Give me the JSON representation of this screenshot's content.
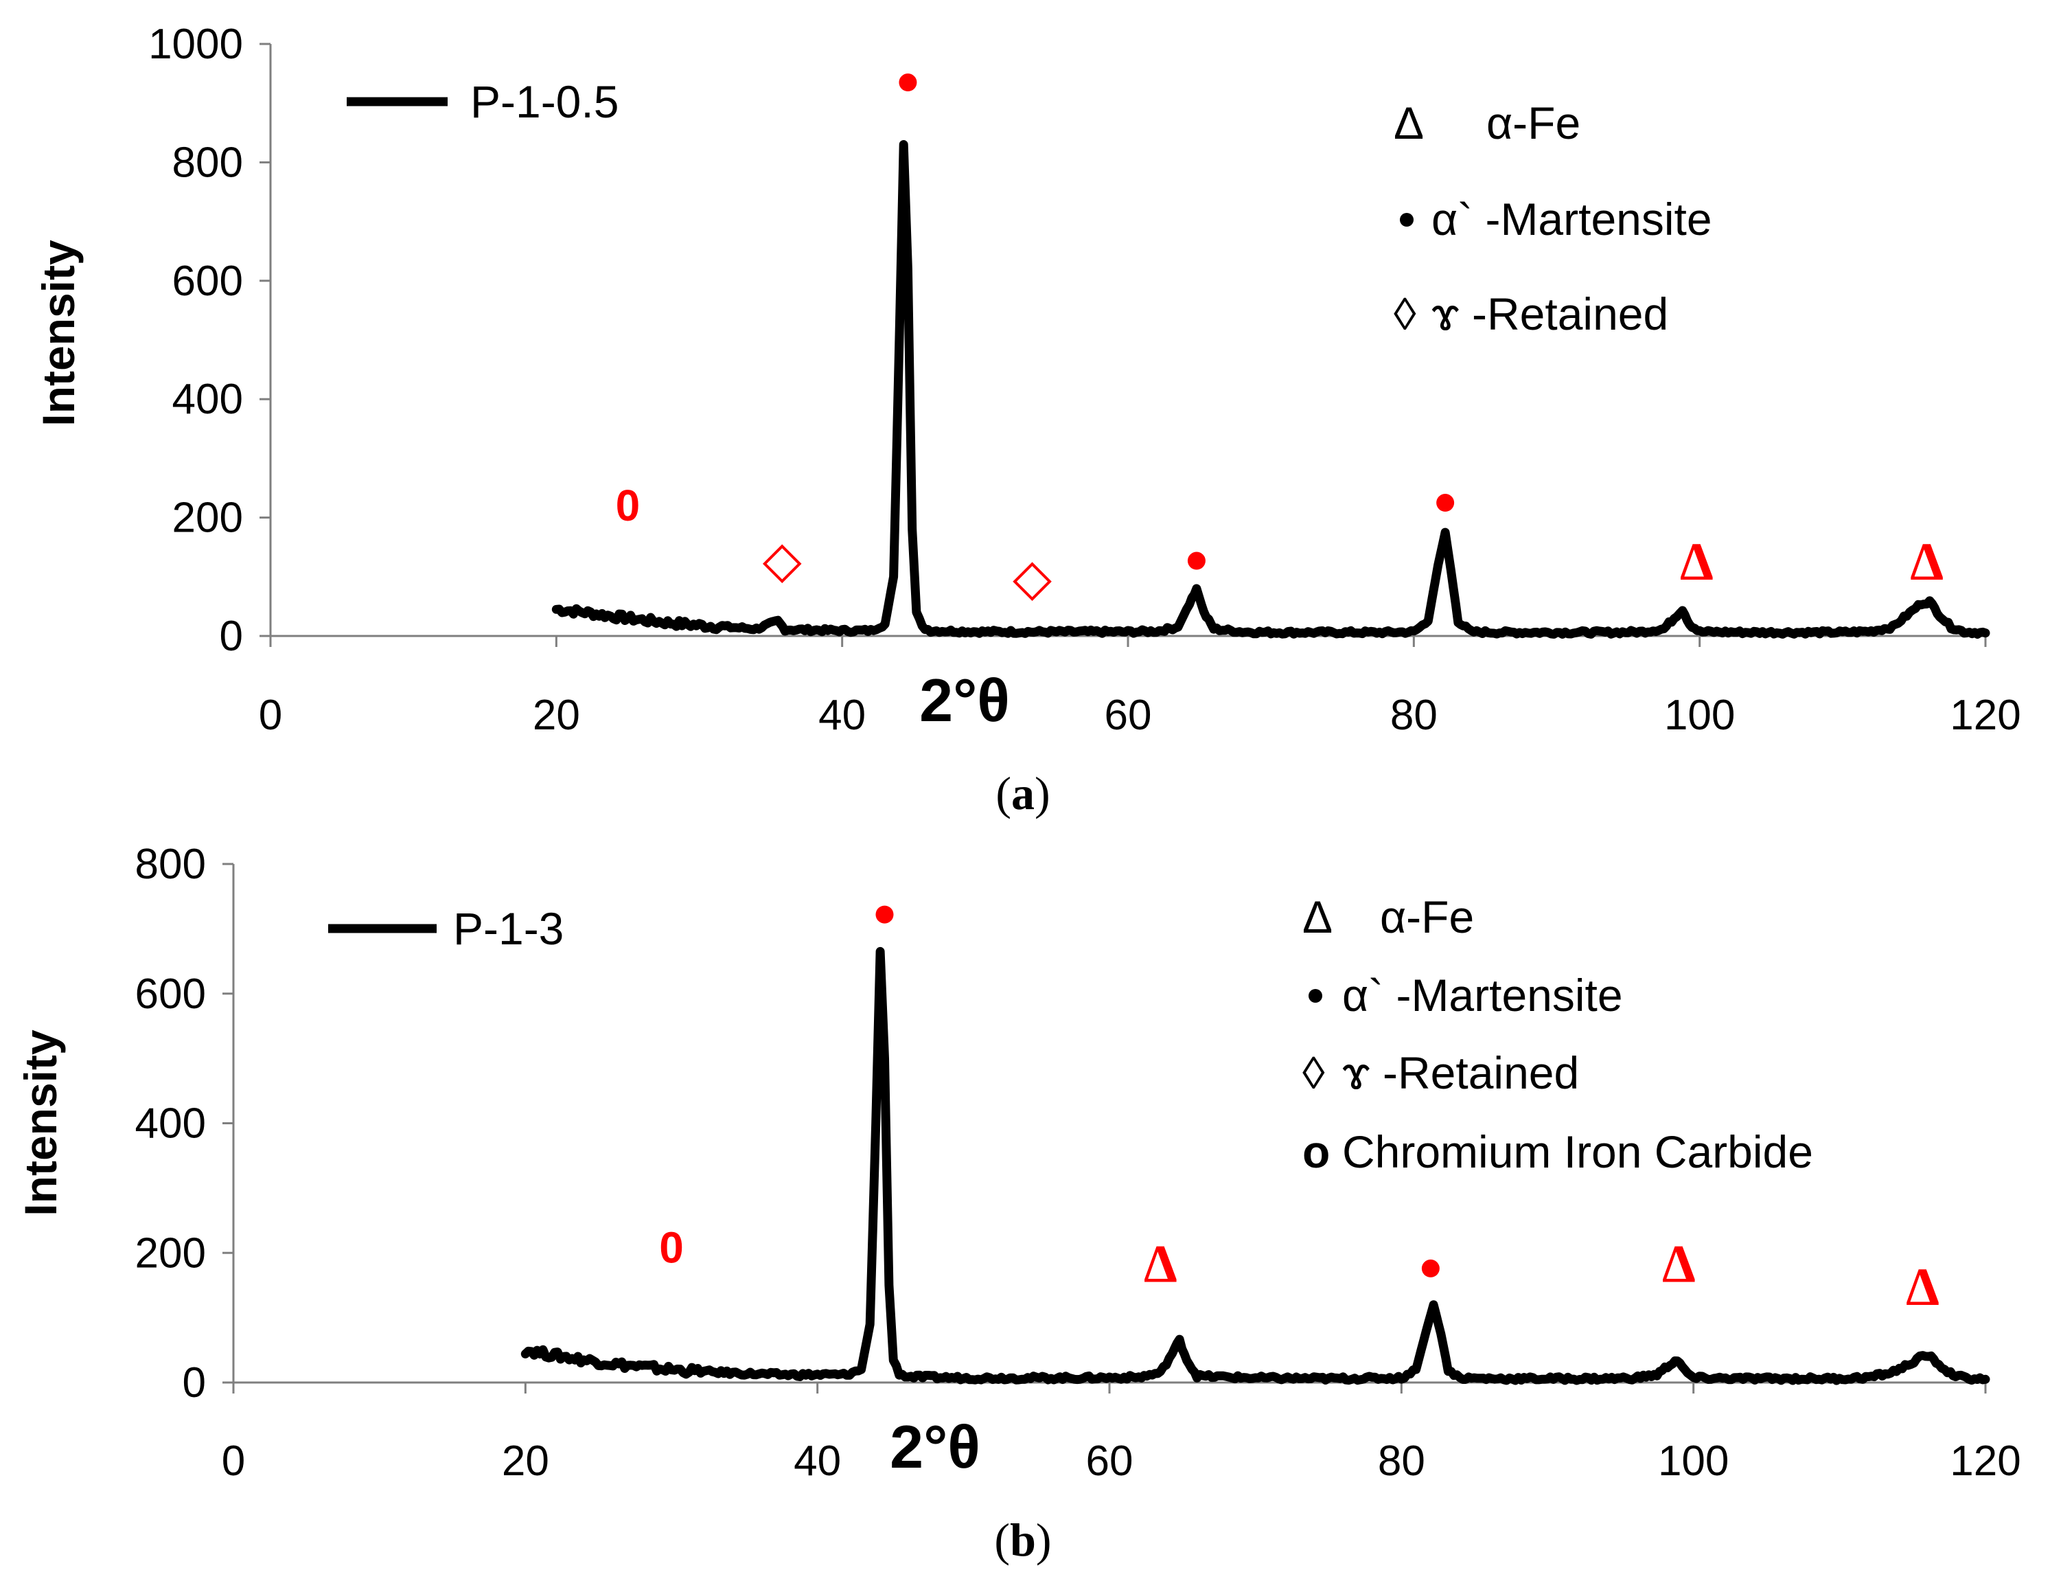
{
  "chart_data": [
    {
      "type": "line",
      "panel_caption": "a",
      "xlabel": "2°θ",
      "ylabel": "Intensity",
      "xlim": [
        0,
        120
      ],
      "ylim": [
        0,
        1000
      ],
      "xticks": [
        0,
        20,
        40,
        60,
        80,
        100,
        120
      ],
      "yticks": [
        0,
        200,
        400,
        600,
        800,
        1000
      ],
      "series": [
        {
          "name": "P-1-0.5",
          "color": "#000000",
          "x": [
            20,
            22,
            24,
            26,
            28,
            30,
            32,
            34,
            35.5,
            36,
            38,
            40,
            42,
            43,
            43.6,
            44,
            44.3,
            44.6,
            44.9,
            45.2,
            45.6,
            46.2,
            48,
            50,
            52,
            54,
            56,
            58,
            60,
            62,
            63.5,
            64.3,
            64.8,
            65.3,
            66,
            68,
            70,
            74,
            78,
            80,
            81,
            81.7,
            82.2,
            82.6,
            83.1,
            84,
            86,
            90,
            94,
            96,
            97.5,
            98.4,
            98.8,
            99.3,
            100,
            104,
            108,
            110,
            112,
            113.5,
            114.5,
            115.5,
            116.1,
            116.8,
            117.6,
            118.5,
            120
          ],
          "y": [
            45,
            40,
            33,
            27,
            22,
            18,
            15,
            12,
            25,
            11,
            10,
            9,
            9,
            20,
            100,
            500,
            830,
            620,
            180,
            40,
            15,
            9,
            8,
            7,
            7,
            7,
            7,
            7,
            7,
            8,
            15,
            55,
            80,
            40,
            12,
            7,
            6,
            6,
            6,
            7,
            25,
            120,
            175,
            110,
            25,
            7,
            6,
            6,
            6,
            7,
            12,
            35,
            45,
            20,
            7,
            6,
            6,
            6,
            8,
            15,
            35,
            55,
            58,
            35,
            15,
            7,
            5
          ]
        }
      ],
      "legend_position": "top-left",
      "phase_key": {
        "alpha_fe": "α-Fe",
        "martensite": "α` -Martensite",
        "retained": "ɤ -Retained"
      },
      "annotations": [
        {
          "symbol": "red-dot",
          "x": 44.6,
          "y": 935
        },
        {
          "symbol": "red-dot",
          "x": 64.8,
          "y": 127
        },
        {
          "symbol": "red-dot",
          "x": 82.2,
          "y": 225
        },
        {
          "symbol": "red-diamond",
          "x": 35.8,
          "y": 122
        },
        {
          "symbol": "red-diamond",
          "x": 53.3,
          "y": 92
        },
        {
          "symbol": "red-delta",
          "text": "Δ",
          "x": 99.8,
          "y": 95
        },
        {
          "symbol": "red-delta",
          "text": "Δ",
          "x": 115.9,
          "y": 95
        },
        {
          "symbol": "red-zero",
          "text": "0",
          "x": 25,
          "y": 195
        }
      ]
    },
    {
      "type": "line",
      "panel_caption": "b",
      "xlabel": "2°θ",
      "ylabel": "Intensity",
      "xlim": [
        0,
        120
      ],
      "ylim": [
        0,
        800
      ],
      "xticks": [
        0,
        20,
        40,
        60,
        80,
        100,
        120
      ],
      "yticks": [
        0,
        200,
        400,
        600,
        800
      ],
      "series": [
        {
          "name": "P-1-3",
          "color": "#000000",
          "x": [
            20,
            22,
            24,
            26,
            28,
            30,
            32,
            34,
            36,
            38,
            40,
            42,
            43,
            43.6,
            44,
            44.3,
            44.6,
            44.9,
            45.2,
            45.6,
            46.2,
            48,
            50,
            54,
            58,
            62,
            63.5,
            64.3,
            64.8,
            65.3,
            66,
            70,
            75,
            80,
            81,
            81.7,
            82.2,
            82.7,
            83.2,
            84,
            86,
            90,
            94,
            96,
            97.5,
            98.4,
            98.9,
            99.4,
            100,
            104,
            108,
            110,
            112,
            113.5,
            114.5,
            115.5,
            116.1,
            116.8,
            117.6,
            118.5,
            120
          ],
          "y": [
            50,
            42,
            35,
            29,
            24,
            20,
            17,
            15,
            13,
            12,
            12,
            12,
            20,
            90,
            400,
            665,
            500,
            150,
            35,
            14,
            9,
            8,
            7,
            7,
            7,
            8,
            15,
            45,
            65,
            35,
            10,
            7,
            6,
            7,
            20,
            80,
            120,
            75,
            20,
            7,
            6,
            6,
            6,
            7,
            12,
            28,
            35,
            18,
            7,
            6,
            6,
            6,
            8,
            15,
            25,
            38,
            42,
            28,
            14,
            7,
            5
          ]
        }
      ],
      "legend_position": "top-left",
      "phase_key": {
        "alpha_fe": "α-Fe",
        "martensite": "α` -Martensite",
        "retained": "ɤ -Retained",
        "carbide": "Chromium Iron Carbide"
      },
      "annotations": [
        {
          "symbol": "red-dot",
          "x": 44.6,
          "y": 722
        },
        {
          "symbol": "red-dot",
          "x": 82.0,
          "y": 176
        },
        {
          "symbol": "red-delta",
          "text": "Δ",
          "x": 63.5,
          "y": 155
        },
        {
          "symbol": "red-delta",
          "text": "Δ",
          "x": 99.0,
          "y": 155
        },
        {
          "symbol": "red-delta",
          "text": "Δ",
          "x": 115.7,
          "y": 120
        },
        {
          "symbol": "red-zero",
          "text": "0",
          "x": 30,
          "y": 185
        }
      ]
    }
  ],
  "symbols": {
    "delta": "Δ",
    "dot": "●",
    "diamond": "◊",
    "circle": "o"
  },
  "colors": {
    "marker": "#ff0000",
    "line": "#000000",
    "axis": "#7f7f7f"
  }
}
